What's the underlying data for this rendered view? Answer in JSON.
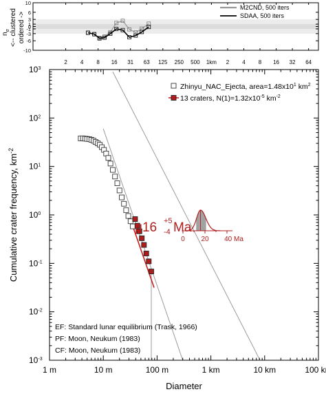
{
  "chart_data": [
    {
      "type": "line",
      "panel": "top",
      "ylabel": "n",
      "ylabel_subscript": "σ",
      "ylabel_lines": [
        "<-- clustered",
        "ordered ->"
      ],
      "y_ticks": [
        10,
        6,
        3,
        1,
        0,
        -1,
        -3,
        -6,
        -10
      ],
      "x_ticks": [
        "2",
        "4",
        "8",
        "16",
        "31",
        "63",
        "125",
        "250",
        "500",
        "1km",
        "2",
        "4",
        "8",
        "16",
        "32",
        "64"
      ],
      "bands": [
        {
          "from": -3,
          "to": 3,
          "color": "#ececec"
        },
        {
          "from": -1,
          "to": 1,
          "color": "#dcdcdc"
        }
      ],
      "legend": [
        {
          "label": "M2CND, 500 iters",
          "color": "#999999"
        },
        {
          "label": "SDAA, 500 iters",
          "color": "#000000"
        }
      ],
      "series": [
        {
          "name": "M2CND, 500 iters",
          "color": "#9a9a9a",
          "x": [
            5.2,
            6.8,
            8.5,
            10.5,
            13.5,
            17.5,
            23,
            30.5,
            40,
            52,
            70
          ],
          "y": [
            -2.7,
            -3.3,
            -4.8,
            -4.2,
            -2.4,
            1.5,
            2.4,
            -1.2,
            -2.5,
            -0.9,
            1.2
          ]
        },
        {
          "name": "SDAA, 500 iters",
          "color": "#000000",
          "x": [
            5.2,
            6.8,
            8.5,
            10.5,
            13.5,
            17.5,
            23,
            30.5,
            40,
            52,
            70
          ],
          "y": [
            -2.6,
            -3.2,
            -5.0,
            -4.7,
            -3.0,
            -1.0,
            -1.5,
            -4.5,
            -3.8,
            -2.3,
            -0.2
          ]
        }
      ]
    },
    {
      "type": "scatter",
      "panel": "main",
      "xlabel": "Diameter",
      "ylabel": "Cumulative crater frequency, km",
      "ylabel_sup": "-2",
      "x_scale": "log",
      "y_scale": "log",
      "xlim_m": [
        1,
        100000
      ],
      "ylim_km2": [
        0.001,
        1000
      ],
      "x_tick_labels": [
        "1 m",
        "10 m",
        "100 m",
        "1 km",
        "10 km",
        "100 km"
      ],
      "y_tick_labels": [
        {
          "base": "10",
          "exp": "3"
        },
        {
          "base": "10",
          "exp": "2"
        },
        {
          "base": "10",
          "exp": "1"
        },
        {
          "base": "10",
          "exp": "0"
        },
        {
          "base": "10",
          "exp": "-1"
        },
        {
          "base": "10",
          "exp": "-2"
        },
        {
          "base": "10",
          "exp": "-3"
        }
      ],
      "legend": [
        {
          "label": "Zhinyu_NAC_Ejecta, area=1.48x10",
          "sup": "1",
          "unit": " km",
          "unit_sup": "2",
          "marker": "open-square"
        },
        {
          "label": "13 craters, N(1)=1.32x10",
          "sup": "-5",
          "unit": " km",
          "unit_sup": "-2",
          "marker": "filled-square",
          "color": "#b01c1c"
        }
      ],
      "open_points": [
        [
          3.8,
          38
        ],
        [
          4.2,
          38
        ],
        [
          4.6,
          37.5
        ],
        [
          5.0,
          37
        ],
        [
          5.5,
          36.5
        ],
        [
          6.0,
          35.5
        ],
        [
          6.6,
          34
        ],
        [
          7.2,
          32
        ],
        [
          7.9,
          30
        ],
        [
          8.6,
          28
        ],
        [
          9.4,
          25
        ],
        [
          10.3,
          22
        ],
        [
          11.3,
          18.5
        ],
        [
          12.4,
          15
        ],
        [
          13.6,
          11.5
        ],
        [
          15.0,
          8.5
        ],
        [
          16.5,
          6.2
        ],
        [
          18.2,
          4.5
        ],
        [
          20.0,
          3.2
        ],
        [
          22.0,
          2.3
        ],
        [
          24.2,
          1.7
        ],
        [
          26.6,
          1.25
        ],
        [
          29.2,
          0.95
        ],
        [
          32.1,
          0.74
        ],
        [
          35.3,
          0.58
        ]
      ],
      "filled_points": [
        [
          39,
          0.82
        ],
        [
          43,
          0.6
        ],
        [
          47,
          0.46
        ],
        [
          52,
          0.33
        ],
        [
          57,
          0.24
        ],
        [
          63,
          0.16
        ],
        [
          70,
          0.11
        ],
        [
          78,
          0.068
        ]
      ],
      "fit_line": {
        "color": "#c81e1e",
        "x_range": [
          33,
          88
        ],
        "N1": 1.32e-05,
        "slope": -3.2
      },
      "reference_lines": [
        {
          "name": "equilibrium",
          "from": [
            15,
            900
          ],
          "to": [
            8200,
            0.001
          ],
          "color": "#9a9a9a"
        },
        {
          "name": "production",
          "from": [
            10,
            60
          ],
          "to": [
            300,
            0.001
          ],
          "color": "#9a9a9a"
        }
      ],
      "vertical_line": {
        "x": 78,
        "y_from": 0.068,
        "y_to": 0.001,
        "color": "#9a9a9a"
      },
      "age_label": {
        "mu": "μ",
        "value": "16",
        "plus": "+5",
        "minus": "-4",
        "unit": "Ma",
        "color": "#b01c1c"
      },
      "pdf_inset": {
        "ticks": [
          "0",
          "20",
          "40 Ma"
        ],
        "range": [
          0,
          40
        ],
        "mode": 16,
        "median": 16,
        "shade_from": 12,
        "shade_to": 21,
        "color": "#b01c1c"
      },
      "notes": [
        "EF: Standard lunar equilibrium (Trask, 1966)",
        "PF: Moon, Neukum (1983)",
        "CF: Moon, Neukum (1983)"
      ]
    }
  ]
}
